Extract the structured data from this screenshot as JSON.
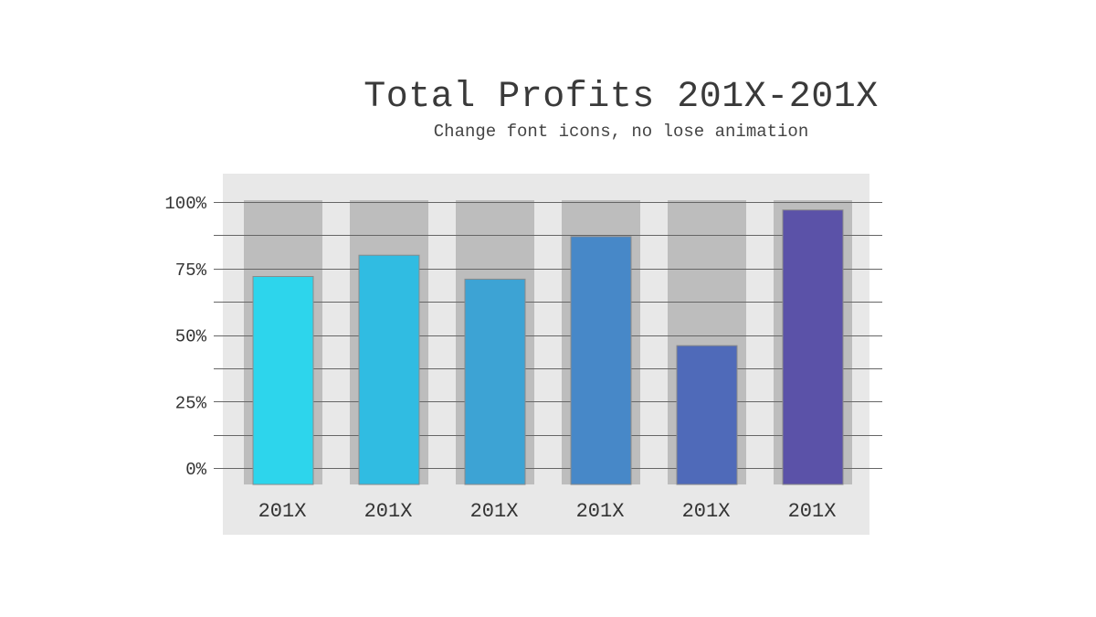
{
  "chart_data": {
    "type": "bar",
    "title": "Total Profits 201X-201X",
    "subtitle": "Change font icons, no lose animation",
    "xlabel": "",
    "ylabel": "",
    "categories": [
      "201X",
      "201X",
      "201X",
      "201X",
      "201X",
      "201X"
    ],
    "values": [
      72,
      80,
      71,
      87,
      46,
      97
    ],
    "max_value": 100,
    "ylim": [
      0,
      100
    ],
    "yticks": [
      0,
      25,
      50,
      75,
      100
    ],
    "ytick_labels": [
      "0%",
      "25%",
      "50%",
      "75%",
      "100%"
    ],
    "grid": true,
    "colors": [
      "#2dd5ec",
      "#30bce2",
      "#3da3d4",
      "#4788c8",
      "#4f6ab9",
      "#5b52a8"
    ],
    "background_color": "#e8e8e8",
    "track_color": "#bdbdbd",
    "gridline_color": "#666666"
  }
}
